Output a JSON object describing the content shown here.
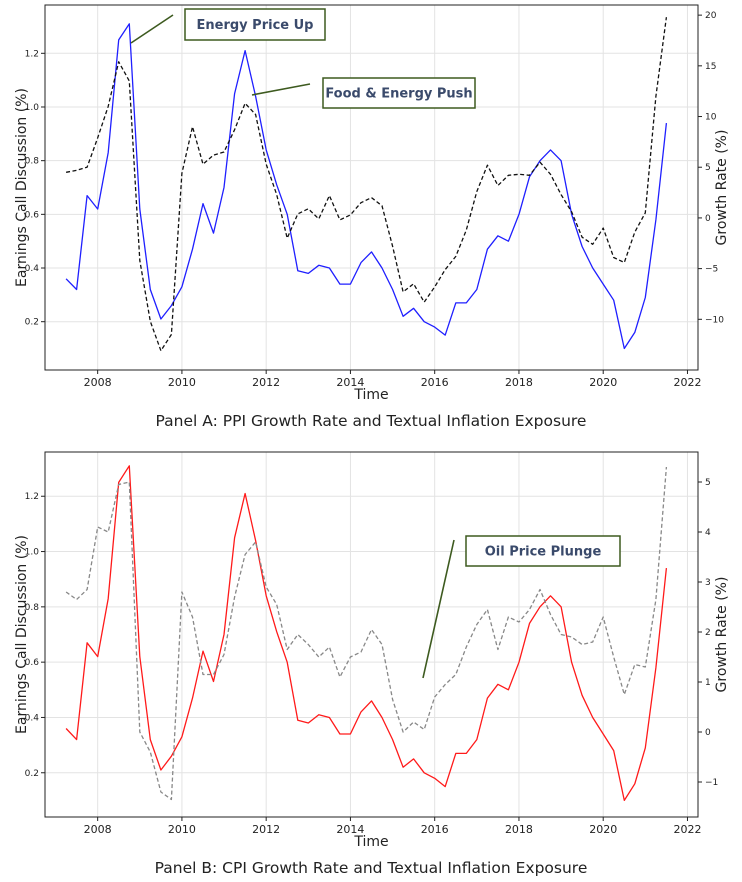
{
  "chart_data": [
    {
      "type": "line",
      "title": "Panel A: PPI Growth Rate and Textual Inflation Exposure",
      "xlabel": "Time",
      "ylabel_left": "Earnings Call Discussion (%)",
      "ylabel_right": "Growth Rate (%)",
      "xlim": [
        2006.75,
        2022.25
      ],
      "xticks": [
        2008,
        2010,
        2012,
        2014,
        2016,
        2018,
        2020,
        2022
      ],
      "ylim_left": [
        0.02,
        1.38
      ],
      "yticks_left": [
        0.2,
        0.4,
        0.6,
        0.8,
        1.0,
        1.2
      ],
      "ylim_right": [
        -15,
        21
      ],
      "yticks_right": [
        -10,
        -5,
        0,
        5,
        10,
        15,
        20
      ],
      "grid": true,
      "series": [
        {
          "axis": "left",
          "style": "solid",
          "color": "#1f1fff",
          "x": [
            2007.25,
            2007.5,
            2007.75,
            2008.0,
            2008.25,
            2008.5,
            2008.75,
            2009.0,
            2009.25,
            2009.5,
            2009.75,
            2010.0,
            2010.25,
            2010.5,
            2010.75,
            2011.0,
            2011.25,
            2011.5,
            2011.75,
            2012.0,
            2012.25,
            2012.5,
            2012.75,
            2013.0,
            2013.25,
            2013.5,
            2013.75,
            2014.0,
            2014.25,
            2014.5,
            2014.75,
            2015.0,
            2015.25,
            2015.5,
            2015.75,
            2016.0,
            2016.25,
            2016.5,
            2016.75,
            2017.0,
            2017.25,
            2017.5,
            2017.75,
            2018.0,
            2018.25,
            2018.5,
            2018.75,
            2019.0,
            2019.25,
            2019.5,
            2019.75,
            2020.0,
            2020.25,
            2020.5,
            2020.75,
            2021.0,
            2021.25,
            2021.5
          ],
          "y": [
            0.36,
            0.32,
            0.67,
            0.62,
            0.83,
            1.25,
            1.31,
            0.62,
            0.32,
            0.21,
            0.26,
            0.33,
            0.47,
            0.64,
            0.53,
            0.7,
            1.05,
            1.21,
            1.04,
            0.84,
            0.71,
            0.6,
            0.39,
            0.38,
            0.41,
            0.4,
            0.34,
            0.34,
            0.42,
            0.46,
            0.4,
            0.32,
            0.22,
            0.25,
            0.2,
            0.18,
            0.15,
            0.27,
            0.27,
            0.32,
            0.47,
            0.52,
            0.5,
            0.6,
            0.74,
            0.8,
            0.84,
            0.8,
            0.6,
            0.48,
            0.4,
            0.34,
            0.28,
            0.1,
            0.16,
            0.29,
            0.58,
            0.94
          ]
        },
        {
          "axis": "right",
          "style": "dashed",
          "color": "#111111",
          "x": [
            2007.25,
            2007.5,
            2007.75,
            2008.0,
            2008.25,
            2008.5,
            2008.75,
            2009.0,
            2009.25,
            2009.5,
            2009.75,
            2010.0,
            2010.25,
            2010.5,
            2010.75,
            2011.0,
            2011.25,
            2011.5,
            2011.75,
            2012.0,
            2012.25,
            2012.5,
            2012.75,
            2013.0,
            2013.25,
            2013.5,
            2013.75,
            2014.0,
            2014.25,
            2014.5,
            2014.75,
            2015.0,
            2015.25,
            2015.5,
            2015.75,
            2016.0,
            2016.25,
            2016.5,
            2016.75,
            2017.0,
            2017.25,
            2017.5,
            2017.75,
            2018.0,
            2018.25,
            2018.5,
            2018.75,
            2019.0,
            2019.25,
            2019.5,
            2019.75,
            2020.0,
            2020.25,
            2020.5,
            2020.75,
            2021.0,
            2021.25,
            2021.5
          ],
          "y": [
            4.5,
            4.7,
            5.0,
            7.9,
            11.0,
            15.4,
            13.5,
            -4.2,
            -10.2,
            -13.1,
            -11.5,
            4.4,
            9.0,
            5.3,
            6.2,
            6.5,
            8.7,
            11.3,
            10.2,
            5.3,
            2.3,
            -2.0,
            0.4,
            0.9,
            -0.1,
            2.2,
            -0.2,
            0.3,
            1.5,
            2.0,
            1.2,
            -2.8,
            -7.3,
            -6.5,
            -8.3,
            -6.8,
            -5.1,
            -3.8,
            -1.2,
            2.6,
            5.2,
            3.2,
            4.2,
            4.3,
            4.2,
            5.5,
            4.3,
            2.3,
            0.6,
            -1.9,
            -2.6,
            -1.0,
            -3.9,
            -4.4,
            -1.4,
            0.5,
            12.0,
            19.8
          ]
        }
      ],
      "annotations": [
        {
          "text": "Energy Price Up"
        },
        {
          "text": "Food & Energy Push"
        }
      ]
    },
    {
      "type": "line",
      "title": "Panel B: CPI Growth Rate and Textual Inflation Exposure",
      "xlabel": "Time",
      "ylabel_left": "Earnings Call Discussion (%)",
      "ylabel_right": "Growth Rate (%)",
      "xlim": [
        2006.75,
        2022.25
      ],
      "xticks": [
        2008,
        2010,
        2012,
        2014,
        2016,
        2018,
        2020,
        2022
      ],
      "ylim_left": [
        0.04,
        1.36
      ],
      "yticks_left": [
        0.2,
        0.4,
        0.6,
        0.8,
        1.0,
        1.2
      ],
      "ylim_right": [
        -1.7,
        5.6
      ],
      "yticks_right": [
        -1,
        0,
        1,
        2,
        3,
        4,
        5
      ],
      "grid": true,
      "series": [
        {
          "axis": "left",
          "style": "solid",
          "color": "#ff1a1a",
          "x": [
            2007.25,
            2007.5,
            2007.75,
            2008.0,
            2008.25,
            2008.5,
            2008.75,
            2009.0,
            2009.25,
            2009.5,
            2009.75,
            2010.0,
            2010.25,
            2010.5,
            2010.75,
            2011.0,
            2011.25,
            2011.5,
            2011.75,
            2012.0,
            2012.25,
            2012.5,
            2012.75,
            2013.0,
            2013.25,
            2013.5,
            2013.75,
            2014.0,
            2014.25,
            2014.5,
            2014.75,
            2015.0,
            2015.25,
            2015.5,
            2015.75,
            2016.0,
            2016.25,
            2016.5,
            2016.75,
            2017.0,
            2017.25,
            2017.5,
            2017.75,
            2018.0,
            2018.25,
            2018.5,
            2018.75,
            2019.0,
            2019.25,
            2019.5,
            2019.75,
            2020.0,
            2020.25,
            2020.5,
            2020.75,
            2021.0,
            2021.25,
            2021.5
          ],
          "y": [
            0.36,
            0.32,
            0.67,
            0.62,
            0.83,
            1.25,
            1.31,
            0.62,
            0.32,
            0.21,
            0.26,
            0.33,
            0.47,
            0.64,
            0.53,
            0.7,
            1.05,
            1.21,
            1.04,
            0.84,
            0.71,
            0.6,
            0.39,
            0.38,
            0.41,
            0.4,
            0.34,
            0.34,
            0.42,
            0.46,
            0.4,
            0.32,
            0.22,
            0.25,
            0.2,
            0.18,
            0.15,
            0.27,
            0.27,
            0.32,
            0.47,
            0.52,
            0.5,
            0.6,
            0.74,
            0.8,
            0.84,
            0.8,
            0.6,
            0.48,
            0.4,
            0.34,
            0.28,
            0.1,
            0.16,
            0.29,
            0.58,
            0.94
          ]
        },
        {
          "axis": "right",
          "style": "dashed",
          "color": "#888888",
          "x": [
            2007.25,
            2007.5,
            2007.75,
            2008.0,
            2008.25,
            2008.5,
            2008.75,
            2009.0,
            2009.25,
            2009.5,
            2009.75,
            2010.0,
            2010.25,
            2010.5,
            2010.75,
            2011.0,
            2011.25,
            2011.5,
            2011.75,
            2012.0,
            2012.25,
            2012.5,
            2012.75,
            2013.0,
            2013.25,
            2013.5,
            2013.75,
            2014.0,
            2014.25,
            2014.5,
            2014.75,
            2015.0,
            2015.25,
            2015.5,
            2015.75,
            2016.0,
            2016.25,
            2016.5,
            2016.75,
            2017.0,
            2017.25,
            2017.5,
            2017.75,
            2018.0,
            2018.25,
            2018.5,
            2018.75,
            2019.0,
            2019.25,
            2019.5,
            2019.75,
            2020.0,
            2020.25,
            2020.5,
            2020.75,
            2021.0,
            2021.25,
            2021.5
          ],
          "y": [
            2.8,
            2.65,
            2.85,
            4.1,
            4.0,
            4.95,
            5.0,
            0.0,
            -0.4,
            -1.2,
            -1.35,
            2.8,
            2.3,
            1.15,
            1.15,
            1.55,
            2.7,
            3.55,
            3.8,
            2.9,
            2.55,
            1.65,
            1.95,
            1.75,
            1.5,
            1.7,
            1.1,
            1.5,
            1.6,
            2.05,
            1.75,
            0.65,
            0.0,
            0.2,
            0.05,
            0.7,
            0.95,
            1.15,
            1.7,
            2.15,
            2.45,
            1.65,
            2.3,
            2.2,
            2.45,
            2.85,
            2.35,
            1.95,
            1.9,
            1.75,
            1.8,
            2.3,
            1.5,
            0.75,
            1.35,
            1.3,
            2.65,
            5.3
          ]
        }
      ],
      "annotations": [
        {
          "text": "Oil Price Plunge"
        }
      ]
    }
  ]
}
